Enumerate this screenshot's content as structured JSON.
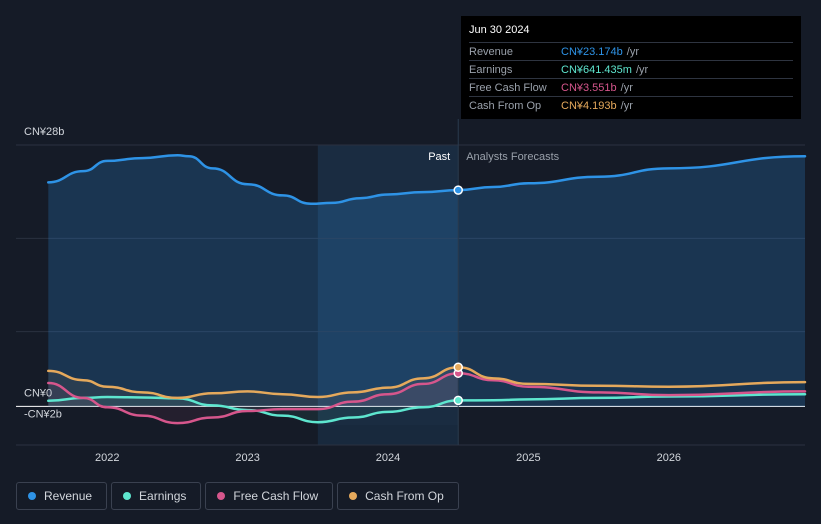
{
  "chart_data": {
    "type": "area",
    "x_range": [
      2021.35,
      2026.97
    ],
    "y_range": [
      -2,
      28
    ],
    "y_labels": [
      {
        "value": 28,
        "text": "CN¥28b"
      },
      {
        "value": 0,
        "text": "CN¥0"
      },
      {
        "value": -2,
        "text": "-CN¥2b"
      }
    ],
    "x_ticks": [
      {
        "value": 2022,
        "text": "2022"
      },
      {
        "value": 2023,
        "text": "2023"
      },
      {
        "value": 2024,
        "text": "2024"
      },
      {
        "value": 2025,
        "text": "2025"
      },
      {
        "value": 2026,
        "text": "2026"
      }
    ],
    "past_label": "Past",
    "forecast_label": "Analysts Forecasts",
    "past_start": 2023.5,
    "divider": 2024.5,
    "series": [
      {
        "name": "Revenue",
        "color": "#2e93e6",
        "fill": true,
        "points": [
          [
            2021.58,
            24.0
          ],
          [
            2021.83,
            25.2
          ],
          [
            2022.0,
            26.3
          ],
          [
            2022.25,
            26.6
          ],
          [
            2022.5,
            26.9
          ],
          [
            2022.58,
            26.8
          ],
          [
            2022.75,
            25.5
          ],
          [
            2023.0,
            23.8
          ],
          [
            2023.25,
            22.6
          ],
          [
            2023.45,
            21.7
          ],
          [
            2023.6,
            21.8
          ],
          [
            2023.8,
            22.3
          ],
          [
            2024.0,
            22.7
          ],
          [
            2024.25,
            22.95
          ],
          [
            2024.5,
            23.17
          ],
          [
            2024.75,
            23.5
          ],
          [
            2025.0,
            23.9
          ],
          [
            2025.5,
            24.6
          ],
          [
            2026.0,
            25.5
          ],
          [
            2026.97,
            26.8
          ]
        ],
        "forecast_from": 2024.5
      },
      {
        "name": "Earnings",
        "color": "#5ee6cf",
        "fill": false,
        "points": [
          [
            2021.58,
            0.6
          ],
          [
            2021.83,
            0.9
          ],
          [
            2022.0,
            1.0
          ],
          [
            2022.25,
            0.95
          ],
          [
            2022.5,
            0.85
          ],
          [
            2022.75,
            0.1
          ],
          [
            2023.0,
            -0.4
          ],
          [
            2023.25,
            -1.0
          ],
          [
            2023.5,
            -1.7
          ],
          [
            2023.75,
            -1.2
          ],
          [
            2024.0,
            -0.6
          ],
          [
            2024.25,
            -0.1
          ],
          [
            2024.5,
            0.64
          ],
          [
            2024.75,
            0.65
          ],
          [
            2025.0,
            0.75
          ],
          [
            2025.5,
            0.9
          ],
          [
            2026.0,
            1.05
          ],
          [
            2026.97,
            1.3
          ]
        ],
        "forecast_from": 2024.5
      },
      {
        "name": "Free Cash Flow",
        "color": "#d6568c",
        "fill": false,
        "points": [
          [
            2021.58,
            2.5
          ],
          [
            2021.83,
            0.9
          ],
          [
            2022.0,
            -0.1
          ],
          [
            2022.25,
            -1.0
          ],
          [
            2022.5,
            -1.8
          ],
          [
            2022.75,
            -1.2
          ],
          [
            2023.0,
            -0.5
          ],
          [
            2023.25,
            -0.3
          ],
          [
            2023.5,
            -0.3
          ],
          [
            2023.75,
            0.5
          ],
          [
            2024.0,
            1.3
          ],
          [
            2024.25,
            2.4
          ],
          [
            2024.5,
            3.55
          ],
          [
            2024.75,
            2.8
          ],
          [
            2025.0,
            2.1
          ],
          [
            2025.5,
            1.5
          ],
          [
            2026.0,
            1.2
          ],
          [
            2026.97,
            1.6
          ]
        ],
        "forecast_from": 2024.5
      },
      {
        "name": "Cash From Op",
        "color": "#e5a95c",
        "fill": false,
        "points": [
          [
            2021.58,
            3.8
          ],
          [
            2021.83,
            2.8
          ],
          [
            2022.0,
            2.1
          ],
          [
            2022.25,
            1.5
          ],
          [
            2022.5,
            0.9
          ],
          [
            2022.75,
            1.4
          ],
          [
            2023.0,
            1.6
          ],
          [
            2023.25,
            1.3
          ],
          [
            2023.5,
            1.0
          ],
          [
            2023.75,
            1.5
          ],
          [
            2024.0,
            2.0
          ],
          [
            2024.25,
            3.0
          ],
          [
            2024.5,
            4.19
          ],
          [
            2024.75,
            3.0
          ],
          [
            2025.0,
            2.4
          ],
          [
            2025.5,
            2.2
          ],
          [
            2026.0,
            2.1
          ],
          [
            2026.97,
            2.6
          ]
        ],
        "forecast_from": 2024.5
      }
    ]
  },
  "tooltip": {
    "date": "Jun 30 2024",
    "rows": [
      {
        "label": "Revenue",
        "value": "CN¥23.174b",
        "unit": "/yr",
        "color": "#2e93e6"
      },
      {
        "label": "Earnings",
        "value": "CN¥641.435m",
        "unit": "/yr",
        "color": "#5ee6cf"
      },
      {
        "label": "Free Cash Flow",
        "value": "CN¥3.551b",
        "unit": "/yr",
        "color": "#d6568c"
      },
      {
        "label": "Cash From Op",
        "value": "CN¥4.193b",
        "unit": "/yr",
        "color": "#e5a95c"
      }
    ]
  },
  "legend": [
    {
      "label": "Revenue",
      "color": "#2e93e6"
    },
    {
      "label": "Earnings",
      "color": "#5ee6cf"
    },
    {
      "label": "Free Cash Flow",
      "color": "#d6568c"
    },
    {
      "label": "Cash From Op",
      "color": "#e5a95c"
    }
  ]
}
